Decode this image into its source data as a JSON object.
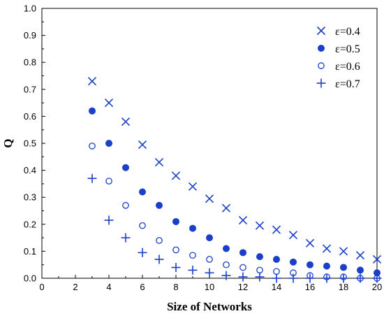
{
  "chart_data": {
    "type": "scatter",
    "xlabel": "Size of Networks",
    "ylabel": "Q",
    "xlim": [
      0,
      20
    ],
    "ylim": [
      0,
      1.0
    ],
    "xticks": [
      0,
      2,
      4,
      6,
      8,
      10,
      12,
      14,
      16,
      18,
      20
    ],
    "yticks": [
      0.0,
      0.1,
      0.2,
      0.3,
      0.4,
      0.5,
      0.6,
      0.7,
      0.8,
      0.9,
      1.0
    ],
    "xtick_labels": [
      "0",
      "2",
      "4",
      "6",
      "8",
      "10",
      "12",
      "14",
      "16",
      "18",
      "20"
    ],
    "ytick_labels": [
      "0.0",
      "0.1",
      "0.2",
      "0.3",
      "0.4",
      "0.5",
      "0.6",
      "0.7",
      "0.8",
      "0.9",
      "1.0"
    ],
    "grid": false,
    "legend_position": "top-right",
    "color": "#1a3fc8",
    "x": [
      3,
      4,
      5,
      6,
      7,
      8,
      9,
      10,
      11,
      12,
      13,
      14,
      15,
      16,
      17,
      18,
      19,
      20
    ],
    "series": [
      {
        "name": "ε=0.4",
        "marker": "x",
        "values": [
          0.73,
          0.65,
          0.58,
          0.495,
          0.43,
          0.38,
          0.34,
          0.295,
          0.26,
          0.215,
          0.195,
          0.18,
          0.16,
          0.13,
          0.11,
          0.1,
          0.085,
          0.07
        ]
      },
      {
        "name": "ε=0.5",
        "marker": "filled-circle",
        "values": [
          0.62,
          0.5,
          0.41,
          0.32,
          0.27,
          0.21,
          0.185,
          0.15,
          0.11,
          0.095,
          0.08,
          0.07,
          0.06,
          0.05,
          0.045,
          0.04,
          0.03,
          0.02
        ]
      },
      {
        "name": "ε=0.6",
        "marker": "open-circle",
        "values": [
          0.49,
          0.36,
          0.27,
          0.195,
          0.14,
          0.105,
          0.085,
          0.07,
          0.05,
          0.04,
          0.03,
          0.025,
          0.02,
          0.01,
          0.005,
          0.005,
          0.0,
          0.0
        ]
      },
      {
        "name": "ε=0.7",
        "marker": "plus",
        "values": [
          0.37,
          0.215,
          0.15,
          0.095,
          0.07,
          0.04,
          0.03,
          0.02,
          0.01,
          0.005,
          0.005,
          0.0,
          0.0,
          0.0,
          0.0,
          0.0,
          0.0,
          0.0
        ]
      }
    ]
  }
}
